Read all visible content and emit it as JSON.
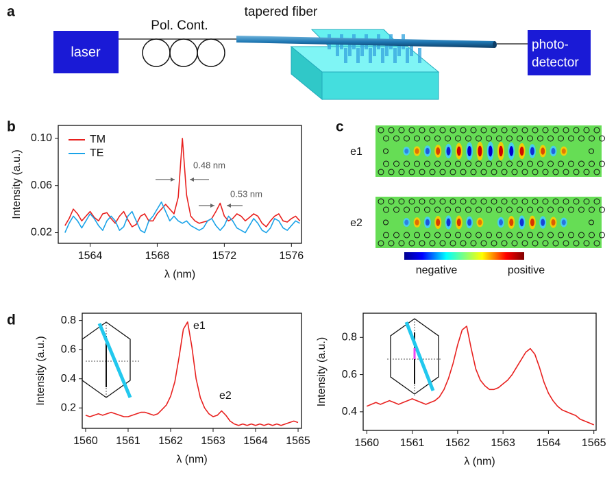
{
  "panel_labels": [
    "a",
    "b",
    "c",
    "d"
  ],
  "setup": {
    "laser": "laser",
    "polarization_controller": "Pol. Cont.",
    "fiber": "tapered fiber",
    "detector": [
      "photo-",
      "detector"
    ]
  },
  "field_maps": {
    "modes": [
      "e1",
      "e2"
    ],
    "colorbar": [
      "negative",
      "positive"
    ]
  },
  "chart_data": [
    {
      "type": "line",
      "xlabel": "λ (nm)",
      "ylabel": "Intensity (a.u.)",
      "x": [
        1562.5,
        1562.75,
        1563,
        1563.25,
        1563.5,
        1563.75,
        1564,
        1564.25,
        1564.5,
        1564.75,
        1565,
        1565.25,
        1565.5,
        1565.75,
        1566,
        1566.25,
        1566.5,
        1566.75,
        1567,
        1567.25,
        1567.5,
        1567.75,
        1568,
        1568.25,
        1568.5,
        1568.75,
        1569,
        1569.25,
        1569.5,
        1569.75,
        1570,
        1570.25,
        1570.5,
        1570.75,
        1571,
        1571.25,
        1571.5,
        1571.75,
        1572,
        1572.25,
        1572.5,
        1572.75,
        1573,
        1573.25,
        1573.5,
        1573.75,
        1574,
        1574.25,
        1574.5,
        1574.75,
        1575,
        1575.25,
        1575.5,
        1575.75,
        1576,
        1576.25,
        1576.5
      ],
      "xlim": [
        1562.1,
        1576.6
      ],
      "xticks": [
        1564,
        1568,
        1572,
        1576
      ],
      "ylim": [
        0.011,
        0.111
      ],
      "yticks": [
        0.02,
        0.06,
        {
          "value": 0.1,
          "label": "0.10"
        }
      ],
      "legend": "upper left",
      "series": [
        {
          "name": "TM",
          "color": "#e8201e",
          "values": [
            0.026,
            0.032,
            0.04,
            0.036,
            0.03,
            0.034,
            0.038,
            0.033,
            0.03,
            0.036,
            0.037,
            0.032,
            0.028,
            0.034,
            0.038,
            0.031,
            0.025,
            0.027,
            0.034,
            0.036,
            0.03,
            0.03,
            0.036,
            0.04,
            0.044,
            0.04,
            0.036,
            0.05,
            0.1,
            0.052,
            0.034,
            0.03,
            0.028,
            0.029,
            0.03,
            0.032,
            0.038,
            0.045,
            0.034,
            0.03,
            0.032,
            0.036,
            0.034,
            0.03,
            0.033,
            0.036,
            0.034,
            0.028,
            0.025,
            0.03,
            0.034,
            0.036,
            0.03,
            0.029,
            0.032,
            0.034,
            0.03
          ]
        },
        {
          "name": "TE",
          "color": "#1aa3e8",
          "values": [
            0.02,
            0.028,
            0.034,
            0.03,
            0.024,
            0.03,
            0.036,
            0.032,
            0.026,
            0.022,
            0.03,
            0.034,
            0.03,
            0.022,
            0.025,
            0.034,
            0.038,
            0.03,
            0.022,
            0.02,
            0.03,
            0.034,
            0.04,
            0.046,
            0.038,
            0.03,
            0.034,
            0.03,
            0.028,
            0.03,
            0.026,
            0.024,
            0.022,
            0.024,
            0.03,
            0.032,
            0.026,
            0.022,
            0.026,
            0.034,
            0.03,
            0.024,
            0.022,
            0.02,
            0.026,
            0.032,
            0.028,
            0.022,
            0.02,
            0.024,
            0.032,
            0.03,
            0.024,
            0.022,
            0.026,
            0.03,
            0.028
          ]
        }
      ],
      "annotations": [
        "0.48 nm",
        "0.53 nm"
      ]
    },
    {
      "type": "line",
      "xlabel": "λ (nm)",
      "ylabel": "Intensity (a.u.)",
      "x": [
        1560,
        1560.1,
        1560.2,
        1560.3,
        1560.4,
        1560.5,
        1560.6,
        1560.7,
        1560.8,
        1560.9,
        1561,
        1561.1,
        1561.2,
        1561.3,
        1561.4,
        1561.5,
        1561.6,
        1561.7,
        1561.8,
        1561.9,
        1562,
        1562.1,
        1562.2,
        1562.3,
        1562.4,
        1562.5,
        1562.6,
        1562.7,
        1562.8,
        1562.9,
        1563,
        1563.1,
        1563.2,
        1563.3,
        1563.4,
        1563.5,
        1563.6,
        1563.7,
        1563.8,
        1563.9,
        1564,
        1564.1,
        1564.2,
        1564.3,
        1564.4,
        1564.5,
        1564.6,
        1564.7,
        1564.8,
        1564.9,
        1565
      ],
      "xlim": [
        1559.92,
        1565.08
      ],
      "xticks": [
        1560,
        1561,
        1562,
        1563,
        1564,
        1565
      ],
      "ylim": [
        0.06,
        0.85
      ],
      "yticks": [
        0.2,
        0.4,
        0.6,
        0.8
      ],
      "series": [
        {
          "color": "#e8201e",
          "values": [
            0.15,
            0.14,
            0.15,
            0.16,
            0.15,
            0.16,
            0.17,
            0.16,
            0.15,
            0.14,
            0.14,
            0.15,
            0.16,
            0.17,
            0.17,
            0.16,
            0.15,
            0.16,
            0.19,
            0.22,
            0.28,
            0.38,
            0.55,
            0.74,
            0.79,
            0.62,
            0.4,
            0.27,
            0.2,
            0.16,
            0.14,
            0.15,
            0.18,
            0.15,
            0.11,
            0.09,
            0.08,
            0.09,
            0.08,
            0.09,
            0.08,
            0.09,
            0.08,
            0.09,
            0.08,
            0.09,
            0.08,
            0.09,
            0.1,
            0.11,
            0.1
          ]
        }
      ],
      "annotations": [
        "e1",
        "e2"
      ]
    },
    {
      "type": "line",
      "xlabel": "λ (nm)",
      "ylabel": "Intensity (a.u.)",
      "x": [
        1560,
        1560.1,
        1560.2,
        1560.3,
        1560.4,
        1560.5,
        1560.6,
        1560.7,
        1560.8,
        1560.9,
        1561,
        1561.1,
        1561.2,
        1561.3,
        1561.4,
        1561.5,
        1561.6,
        1561.7,
        1561.8,
        1561.9,
        1562,
        1562.1,
        1562.2,
        1562.3,
        1562.4,
        1562.5,
        1562.6,
        1562.7,
        1562.8,
        1562.9,
        1563,
        1563.1,
        1563.2,
        1563.3,
        1563.4,
        1563.5,
        1563.6,
        1563.7,
        1563.8,
        1563.9,
        1564,
        1564.1,
        1564.2,
        1564.3,
        1564.4,
        1564.5,
        1564.6,
        1564.7,
        1564.8,
        1564.9,
        1565
      ],
      "xlim": [
        1559.92,
        1565.05
      ],
      "xticks": [
        1560,
        1561,
        1562,
        1563,
        1564,
        1565
      ],
      "ylim": [
        0.3,
        0.93
      ],
      "yticks": [
        0.4,
        0.6,
        0.8
      ],
      "series": [
        {
          "color": "#e8201e",
          "values": [
            0.43,
            0.44,
            0.45,
            0.44,
            0.45,
            0.46,
            0.45,
            0.44,
            0.45,
            0.46,
            0.47,
            0.46,
            0.45,
            0.44,
            0.45,
            0.46,
            0.48,
            0.52,
            0.58,
            0.66,
            0.76,
            0.84,
            0.86,
            0.74,
            0.63,
            0.57,
            0.54,
            0.52,
            0.52,
            0.53,
            0.55,
            0.57,
            0.6,
            0.64,
            0.68,
            0.72,
            0.74,
            0.71,
            0.64,
            0.56,
            0.5,
            0.46,
            0.43,
            0.41,
            0.4,
            0.39,
            0.38,
            0.36,
            0.35,
            0.34,
            0.33
          ]
        }
      ]
    }
  ]
}
